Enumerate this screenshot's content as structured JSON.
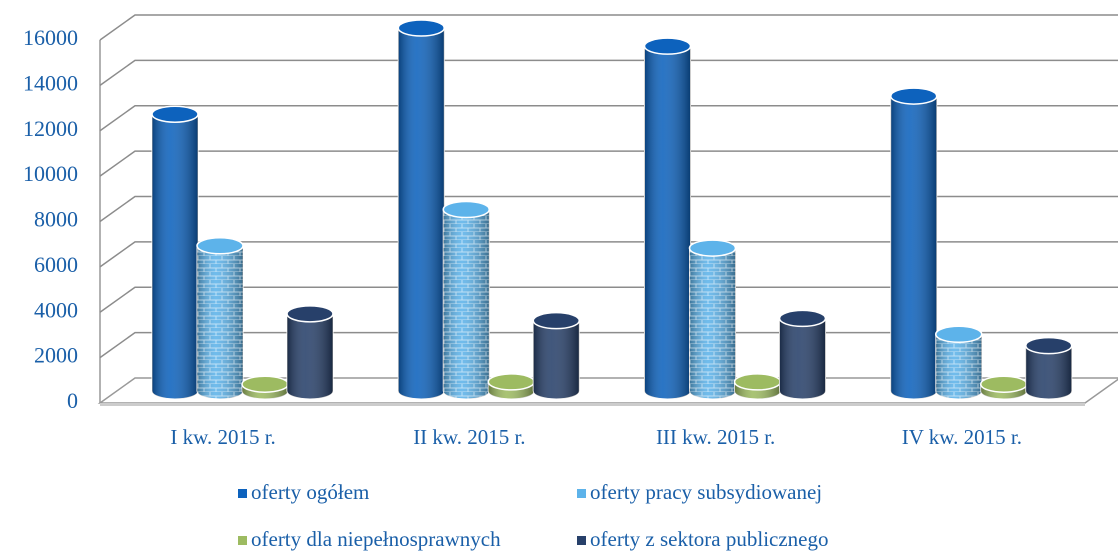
{
  "chart_data": {
    "type": "bar3d",
    "categories": [
      "I kw. 2015 r.",
      "II kw. 2015 r.",
      "III kw. 2015 r.",
      "IV kw. 2015 r."
    ],
    "series": [
      {
        "name": "oferty ogółem",
        "color": "#0d62bd",
        "values": [
          12200,
          16000,
          15200,
          13000
        ]
      },
      {
        "name": "oferty pracy subsydiowanej",
        "color": "#5db3ea",
        "values": [
          6400,
          8000,
          6300,
          2500
        ]
      },
      {
        "name": "oferty dla niepełnosprawnych",
        "color": "#9dbb61",
        "values": [
          300,
          400,
          400,
          300
        ]
      },
      {
        "name": "oferty z sektora publicznego",
        "color": "#27406a",
        "values": [
          3400,
          3100,
          3200,
          2000
        ]
      }
    ],
    "ylim": [
      0,
      16000
    ],
    "yticks": [
      0,
      2000,
      4000,
      6000,
      8000,
      10000,
      12000,
      14000,
      16000
    ],
    "grid": true
  }
}
